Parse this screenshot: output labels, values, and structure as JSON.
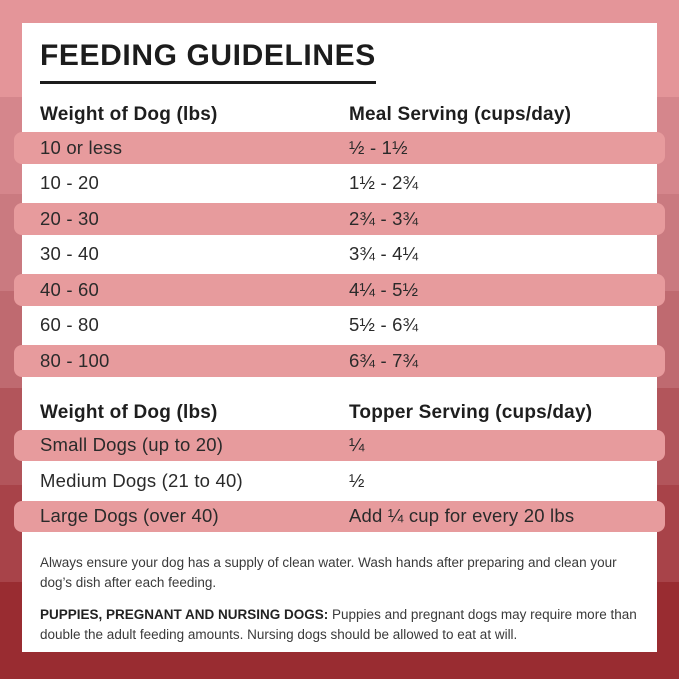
{
  "page": {
    "title": "FEEDING GUIDELINES"
  },
  "colors": {
    "row_highlight": "#e79b9d",
    "card_background": "#ffffff",
    "text": "#242424",
    "background_bands": [
      "#e49599",
      "#d5868c",
      "#ca7a80",
      "#bf6a70",
      "#b2555b",
      "#a84349",
      "#992c31"
    ]
  },
  "meal_table": {
    "col1_header": "Weight of Dog (lbs)",
    "col2_header": "Meal Serving (cups/day)",
    "rows": [
      {
        "weight": "10 or less",
        "serving": "½ - 1½"
      },
      {
        "weight": "10 - 20",
        "serving": "1½ - 2¾"
      },
      {
        "weight": "20 - 30",
        "serving": "2¾ - 3¾"
      },
      {
        "weight": "30 - 40",
        "serving": "3¾ - 4¼"
      },
      {
        "weight": "40 - 60",
        "serving": "4¼ - 5½"
      },
      {
        "weight": "60 - 80",
        "serving": "5½ - 6¾"
      },
      {
        "weight": "80 - 100",
        "serving": "6¾ - 7¾"
      }
    ]
  },
  "topper_table": {
    "col1_header": "Weight of Dog (lbs)",
    "col2_header": "Topper Serving (cups/day)",
    "rows": [
      {
        "weight": "Small Dogs (up to 20)",
        "serving": "¼"
      },
      {
        "weight": "Medium Dogs (21 to 40)",
        "serving": "½"
      },
      {
        "weight": "Large Dogs (over 40)",
        "serving": "Add ¼ cup for every 20 lbs"
      }
    ]
  },
  "footnotes": {
    "water_note": "Always ensure your dog has a supply of clean water. Wash hands after preparing and clean your dog’s dish after each feeding.",
    "special_note_label": "PUPPIES, PREGNANT AND NURSING DOGS:",
    "special_note_text": " Puppies and pregnant dogs may require more than double the adult feeding amounts. Nursing dogs should be allowed to eat at will."
  }
}
